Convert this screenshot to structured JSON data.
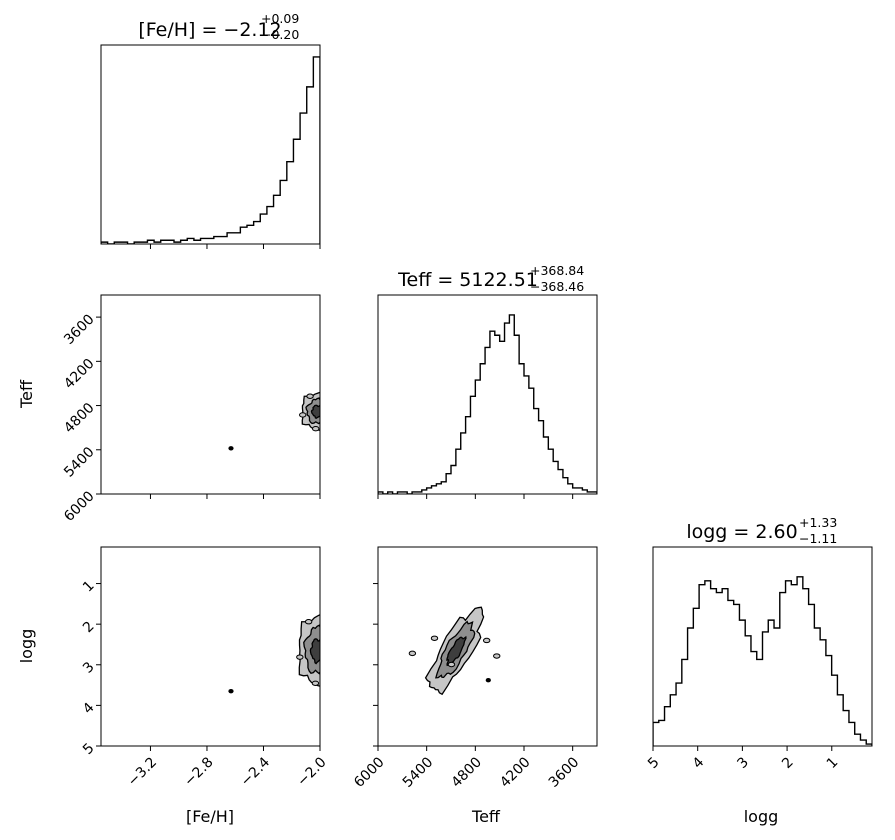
{
  "chart_data": {
    "type": "corner",
    "parameters": [
      {
        "key": "feh",
        "label": "[Fe/H]",
        "title": {
          "name": "[Fe/H]",
          "median": "−2.12",
          "plus": "+0.09",
          "minus": "−0.20"
        },
        "range": [
          -3.55,
          -2.0
        ],
        "inverted": false,
        "ticks": [
          -3.2,
          -2.8,
          -2.4,
          -2.0
        ],
        "tick_labels": [
          "−3.2",
          "−2.8",
          "−2.4",
          "−2.0"
        ]
      },
      {
        "key": "teff",
        "label": "Teff",
        "title": {
          "name": "Teff",
          "median": "5122.51",
          "plus": "+368.84",
          "minus": "−368.46"
        },
        "range": [
          3300,
          6000
        ],
        "inverted": true,
        "ticks": [
          6000,
          5400,
          4800,
          4200,
          3600
        ],
        "tick_labels": [
          "6000",
          "5400",
          "4800",
          "4200",
          "3600"
        ]
      },
      {
        "key": "logg",
        "label": "logg",
        "title": {
          "name": "logg",
          "median": "2.60",
          "plus": "+1.33",
          "minus": "−1.11"
        },
        "range": [
          0.1,
          5.0
        ],
        "inverted": true,
        "ticks": [
          5,
          4,
          3,
          2,
          1
        ],
        "tick_labels": [
          "5",
          "4",
          "3",
          "2",
          "1"
        ]
      }
    ],
    "histograms": {
      "feh": [
        1,
        0,
        1,
        1,
        0,
        1,
        1,
        2,
        1,
        2,
        2,
        1,
        2,
        3,
        2,
        3,
        3,
        4,
        4,
        6,
        6,
        9,
        10,
        12,
        16,
        20,
        26,
        34,
        44,
        56,
        70,
        84,
        100
      ],
      "teff": [
        1,
        0,
        1,
        0,
        1,
        1,
        0,
        1,
        1,
        2,
        3,
        4,
        5,
        6,
        10,
        14,
        22,
        30,
        38,
        48,
        56,
        64,
        72,
        80,
        78,
        75,
        84,
        88,
        78,
        64,
        58,
        52,
        42,
        36,
        28,
        22,
        16,
        12,
        8,
        5,
        3,
        3,
        2,
        1,
        1
      ],
      "logg": [
        12,
        13,
        20,
        26,
        32,
        44,
        60,
        70,
        82,
        84,
        80,
        78,
        80,
        74,
        72,
        64,
        56,
        48,
        44,
        58,
        64,
        60,
        78,
        84,
        82,
        86,
        80,
        72,
        60,
        54,
        46,
        36,
        26,
        18,
        12,
        6,
        3,
        1
      ]
    },
    "histogram_peaks": {
      "feh": 0.94,
      "teff": 0.9,
      "logg": 0.85
    },
    "contours": [
      {
        "x": "feh",
        "y": "teff",
        "center": [
          -2.02,
          4880
        ],
        "spread": [
          0.2,
          450
        ],
        "correlation": 0.0,
        "outlier": [
          -2.63,
          5380
        ]
      },
      {
        "x": "feh",
        "y": "logg",
        "center": [
          -2.02,
          2.65
        ],
        "spread": [
          0.24,
          1.55
        ],
        "correlation": 0.0,
        "outlier": [
          -2.63,
          3.65
        ]
      },
      {
        "x": "teff",
        "y": "logg",
        "center": [
          5040,
          2.65
        ],
        "spread": [
          470,
          1.6
        ],
        "correlation": 0.85,
        "outlier": [
          4640,
          3.38
        ]
      }
    ],
    "contour_levels": [
      "1-sigma",
      "1.5-sigma",
      "2-sigma"
    ],
    "colors": {
      "fill_outer": "#c6c6c6",
      "fill_middle": "#8e8e8e",
      "fill_inner": "#3e3e3e",
      "line": "#000000"
    }
  }
}
